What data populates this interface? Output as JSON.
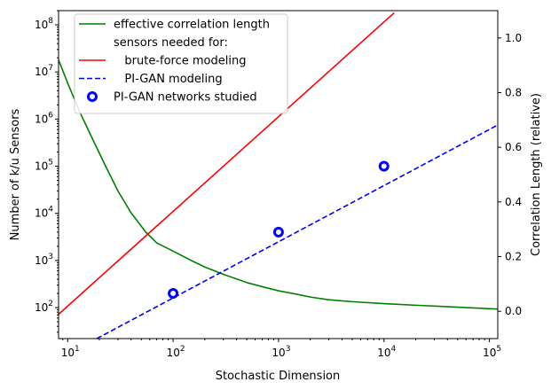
{
  "chart_data": {
    "type": "line",
    "title": "",
    "xlabel": "Stochastic Dimension",
    "ylabel_left": "Number of k/u Sensors",
    "ylabel_right": "Correlation Length (relative)",
    "x_scale": "log",
    "y_left_scale": "log",
    "xlim": [
      8.2,
      120000
    ],
    "ylim_left": [
      22,
      200000000
    ],
    "ylim_right": [
      -0.1,
      1.1
    ],
    "x_ticks": [
      {
        "value": 10,
        "base": "10",
        "exp": "1"
      },
      {
        "value": 100,
        "base": "10",
        "exp": "2"
      },
      {
        "value": 1000,
        "base": "10",
        "exp": "3"
      },
      {
        "value": 10000,
        "base": "10",
        "exp": "4"
      },
      {
        "value": 100000,
        "base": "10",
        "exp": "5"
      }
    ],
    "y_left_ticks": [
      {
        "value": 100,
        "base": "10",
        "exp": "2"
      },
      {
        "value": 1000,
        "base": "10",
        "exp": "3"
      },
      {
        "value": 10000,
        "base": "10",
        "exp": "4"
      },
      {
        "value": 100000,
        "base": "10",
        "exp": "5"
      },
      {
        "value": 1000000,
        "base": "10",
        "exp": "6"
      },
      {
        "value": 10000000,
        "base": "10",
        "exp": "7"
      },
      {
        "value": 100000000,
        "base": "10",
        "exp": "8"
      }
    ],
    "y_right_ticks": [
      {
        "value": 0.0,
        "label": "0.0"
      },
      {
        "value": 0.2,
        "label": "0.2"
      },
      {
        "value": 0.4,
        "label": "0.4"
      },
      {
        "value": 0.6,
        "label": "0.6"
      },
      {
        "value": 0.8,
        "label": "0.8"
      },
      {
        "value": 1.0,
        "label": "1.0"
      }
    ],
    "series": [
      {
        "name": "effective correlation length",
        "axis": "right",
        "color": "#008000",
        "style": "solid",
        "x": [
          8.2,
          10,
          13,
          17,
          22,
          30,
          40,
          55,
          70,
          100,
          150,
          200,
          300,
          500,
          700,
          1000,
          1500,
          2000,
          3000,
          5000,
          10000,
          20000,
          50000,
          120000
        ],
        "y": [
          0.92,
          0.835,
          0.73,
          0.635,
          0.545,
          0.44,
          0.36,
          0.29,
          0.25,
          0.22,
          0.185,
          0.162,
          0.135,
          0.105,
          0.09,
          0.075,
          0.062,
          0.052,
          0.042,
          0.035,
          0.028,
          0.022,
          0.015,
          0.008
        ]
      },
      {
        "name": "brute-force modeling",
        "axis": "left",
        "color": "#ff0000",
        "style": "solid",
        "x": [
          8.2,
          12500
        ],
        "y": [
          72,
          180000000
        ]
      },
      {
        "name": "PI-GAN modeling",
        "axis": "left",
        "color": "#0000ff",
        "style": "dashed",
        "x": [
          18.9,
          120000
        ],
        "y": [
          22,
          750000
        ]
      },
      {
        "name": "PI-GAN networks studied",
        "axis": "left",
        "color": "#0000ff",
        "style": "marker",
        "x": [
          100,
          1000,
          10000
        ],
        "y": [
          200,
          4000,
          100000
        ]
      }
    ],
    "legend": {
      "placement": "top-left",
      "entries": [
        {
          "label": "effective correlation length",
          "kind": "line",
          "color": "#008000",
          "dash": "none"
        },
        {
          "label": "sensors needed for:",
          "kind": "none",
          "color": "none",
          "dash": "none"
        },
        {
          "label": "   brute-force modeling",
          "kind": "line",
          "color": "#ff0000",
          "dash": "none"
        },
        {
          "label": "   PI-GAN modeling",
          "kind": "line",
          "color": "#0000ff",
          "dash": "dashed"
        },
        {
          "label": "PI-GAN networks studied",
          "kind": "marker",
          "color": "#0000ff",
          "dash": "none"
        }
      ]
    }
  }
}
